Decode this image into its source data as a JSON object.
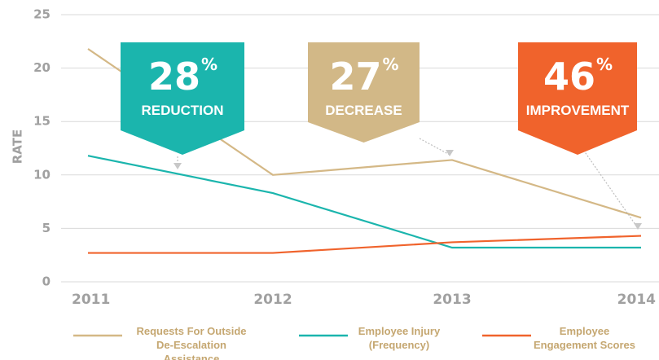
{
  "chart_data": {
    "type": "line",
    "y_label": "RATE",
    "categories": [
      "2011",
      "2012",
      "2013",
      "2014"
    ],
    "ylim": [
      0,
      25
    ],
    "yticks": [
      0,
      5,
      10,
      15,
      20,
      25
    ],
    "grid": true,
    "series": [
      {
        "name": "Requests For Outside De-Escalation Assistance",
        "color": "#d4b886",
        "values": [
          21.8,
          10,
          11.4,
          6
        ]
      },
      {
        "name": "Employee Injury (Frequency)",
        "color": "#1bb5ad",
        "values": [
          11.8,
          8.3,
          3.2,
          3.2
        ]
      },
      {
        "name": "Employee Engagement Scores",
        "color": "#f0632c",
        "values": [
          2.7,
          2.7,
          3.7,
          4.3
        ]
      }
    ],
    "annotations": [
      {
        "number": "28",
        "suffix": "%",
        "label": "REDUCTION",
        "color": "#1bb5ad"
      },
      {
        "number": "27",
        "suffix": "%",
        "label": "DECREASE",
        "color": "#d2b887"
      },
      {
        "number": "46",
        "suffix": "%",
        "label": "IMPROVEMENT",
        "color": "#f0632c"
      }
    ]
  }
}
